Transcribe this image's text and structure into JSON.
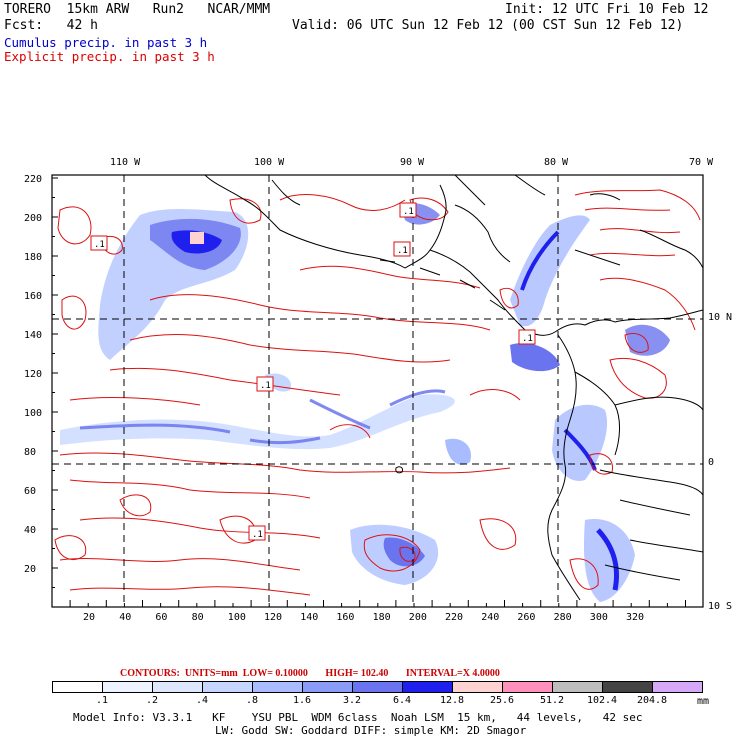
{
  "header": {
    "model_line": "TORERO  15km ARW   Run2   NCAR/MMM",
    "init": "Init: 12 UTC Fri 10 Feb 12",
    "fcst": "Fcst:   42 h",
    "valid": "Valid: 06 UTC Sun 12 Feb 12 (00 CST Sun 12 Feb 12)",
    "cumulus": "Cumulus precip. in past 3 h",
    "explicit": "Explicit precip. in past 3 h"
  },
  "axes": {
    "top_lon": [
      "110 W",
      "100 W",
      "90 W",
      "80 W",
      "70 W"
    ],
    "right_lat": [
      "10 N",
      "0",
      "10 S"
    ],
    "y_ticks": [
      "220",
      "200",
      "180",
      "160",
      "140",
      "120",
      "100",
      "80",
      "60",
      "40",
      "20"
    ],
    "x_ticks": [
      "20",
      "40",
      "60",
      "80",
      "100",
      "120",
      "140",
      "160",
      "180",
      "200",
      "220",
      "240",
      "260",
      "280",
      "300",
      "320"
    ]
  },
  "labels": {
    "box_value": ".1"
  },
  "contours_info": {
    "title": "CONTOURS:",
    "units": "UNITS=mm",
    "low": "LOW= 0.10000",
    "high": "HIGH= 102.40",
    "interval": "INTERVAL=X 4.0000"
  },
  "colorbar": {
    "labels": [
      ".1",
      ".2",
      ".4",
      ".8",
      "1.6",
      "3.2",
      "6.4",
      "12.8",
      "25.6",
      "51.2",
      "102.4",
      "204.8"
    ],
    "unit": "mm",
    "colors": [
      "#ffffff",
      "#eef4ff",
      "#dde8ff",
      "#c6d6ff",
      "#a8bcff",
      "#8a9cf5",
      "#6a74ee",
      "#2020ee",
      "#ffd2d2",
      "#ff90bb",
      "#bdbdbd",
      "#444444",
      "#d8a8f8"
    ]
  },
  "footer": {
    "line1": "Model Info: V3.3.1   KF    YSU PBL  WDM 6class  Noah LSM  15 km,   44 levels,   42 sec",
    "line2": "LW: Godd SW: Goddard DIFF: simple KM: 2D Smagor"
  }
}
